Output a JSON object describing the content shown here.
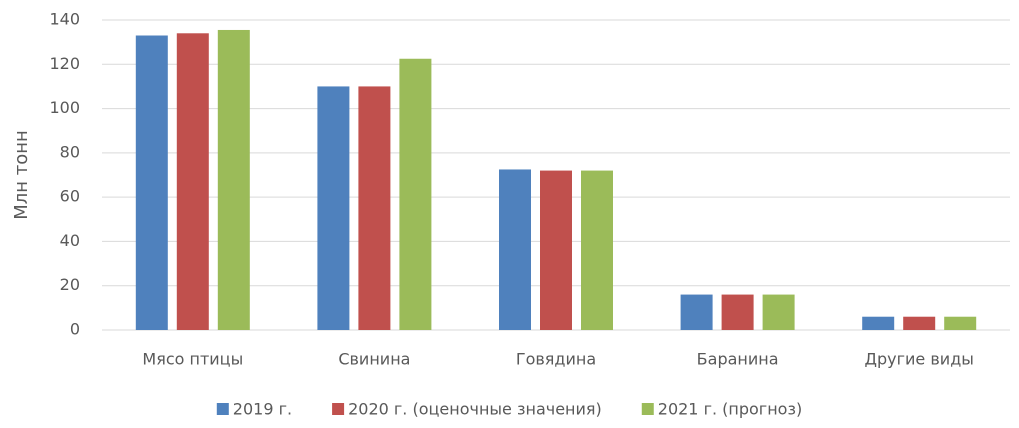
{
  "chart_data": {
    "type": "bar",
    "y_label": "Млн тонн",
    "categories": [
      "Мясо птицы",
      "Свинина",
      "Говядина",
      "Баранина",
      "Другие виды"
    ],
    "series": [
      {
        "name": "2019 г.",
        "color": "#4f81bd",
        "values": [
          133,
          110,
          72.5,
          16,
          6
        ]
      },
      {
        "name": "2020 г. (оценочные значения)",
        "color": "#c0504d",
        "values": [
          134,
          110,
          72,
          16,
          6
        ]
      },
      {
        "name": "2021 г. (прогноз)",
        "color": "#9bbb59",
        "values": [
          135.5,
          122.5,
          72,
          16,
          6
        ]
      }
    ],
    "ylim": [
      0,
      140
    ],
    "yticks": [
      0,
      20,
      40,
      60,
      80,
      100,
      120,
      140
    ],
    "grid": true,
    "legend": "bottom"
  }
}
